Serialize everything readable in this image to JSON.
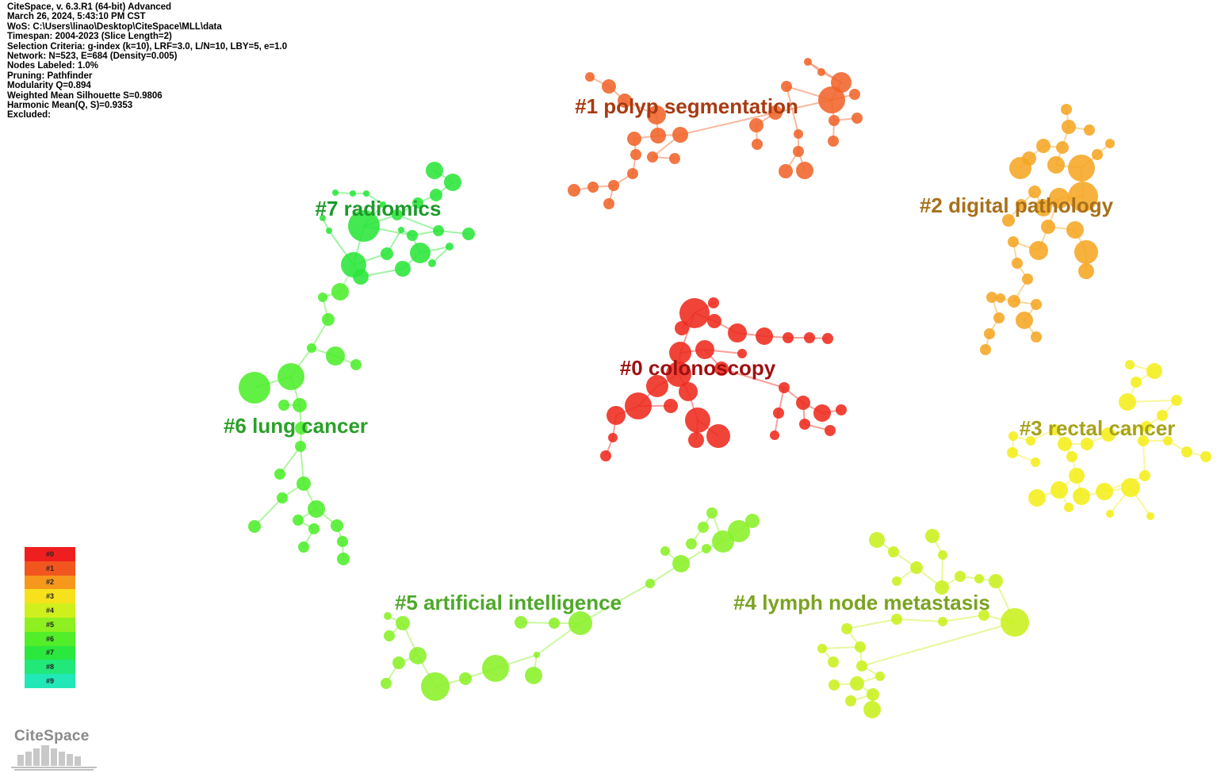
{
  "header_info": [
    "CiteSpace, v. 6.3.R1 (64-bit) Advanced",
    "March 26, 2024, 5:43:10 PM CST",
    "WoS: C:\\Users\\linao\\Desktop\\CiteSpace\\MLL\\data",
    "Timespan: 2004-2023 (Slice Length=2)",
    "Selection Criteria: g-index (k=10), LRF=3.0, L/N=10, LBY=5, e=1.0",
    "Network: N=523, E=684 (Density=0.005)",
    "Nodes Labeled: 1.0%",
    "Pruning: Pathfinder",
    "Modularity Q=0.894",
    "Weighted Mean Silhouette S=0.9806",
    "Harmonic Mean(Q, S)=0.9353",
    "Excluded:"
  ],
  "clusters": [
    {
      "id": 0,
      "label": "#0 colonoscopy",
      "color": "#ee2a1e",
      "text_color": "#9e1010"
    },
    {
      "id": 1,
      "label": "#1 polyp segmentation",
      "color": "#f0642a",
      "text_color": "#a83a12"
    },
    {
      "id": 2,
      "label": "#2 digital pathology",
      "color": "#f5a623",
      "text_color": "#a8701a"
    },
    {
      "id": 3,
      "label": "#3 rectal cancer",
      "color": "#f4ee1a",
      "text_color": "#a8a21a"
    },
    {
      "id": 4,
      "label": "#4 lymph node metastasis",
      "color": "#c8f01e",
      "text_color": "#7aa320"
    },
    {
      "id": 5,
      "label": "#5 artificial intelligence",
      "color": "#8af028",
      "text_color": "#4ea82a"
    },
    {
      "id": 6,
      "label": "#6 lung cancer",
      "color": "#4cee2a",
      "text_color": "#2aa028"
    },
    {
      "id": 7,
      "label": "#7 radiomics",
      "color": "#2ae63a",
      "text_color": "#1c9a2a"
    }
  ],
  "legend": [
    {
      "label": "#0",
      "color": "#ef1f1f"
    },
    {
      "label": "#1",
      "color": "#f0561e"
    },
    {
      "label": "#2",
      "color": "#f5981c"
    },
    {
      "label": "#3",
      "color": "#f7e11c"
    },
    {
      "label": "#4",
      "color": "#cff01c"
    },
    {
      "label": "#5",
      "color": "#8ef020"
    },
    {
      "label": "#6",
      "color": "#52ee2a"
    },
    {
      "label": "#7",
      "color": "#2ae83e"
    },
    {
      "label": "#8",
      "color": "#22e87a"
    },
    {
      "label": "#9",
      "color": "#22e8b8"
    }
  ],
  "logo": {
    "text": "CiteSpace"
  }
}
